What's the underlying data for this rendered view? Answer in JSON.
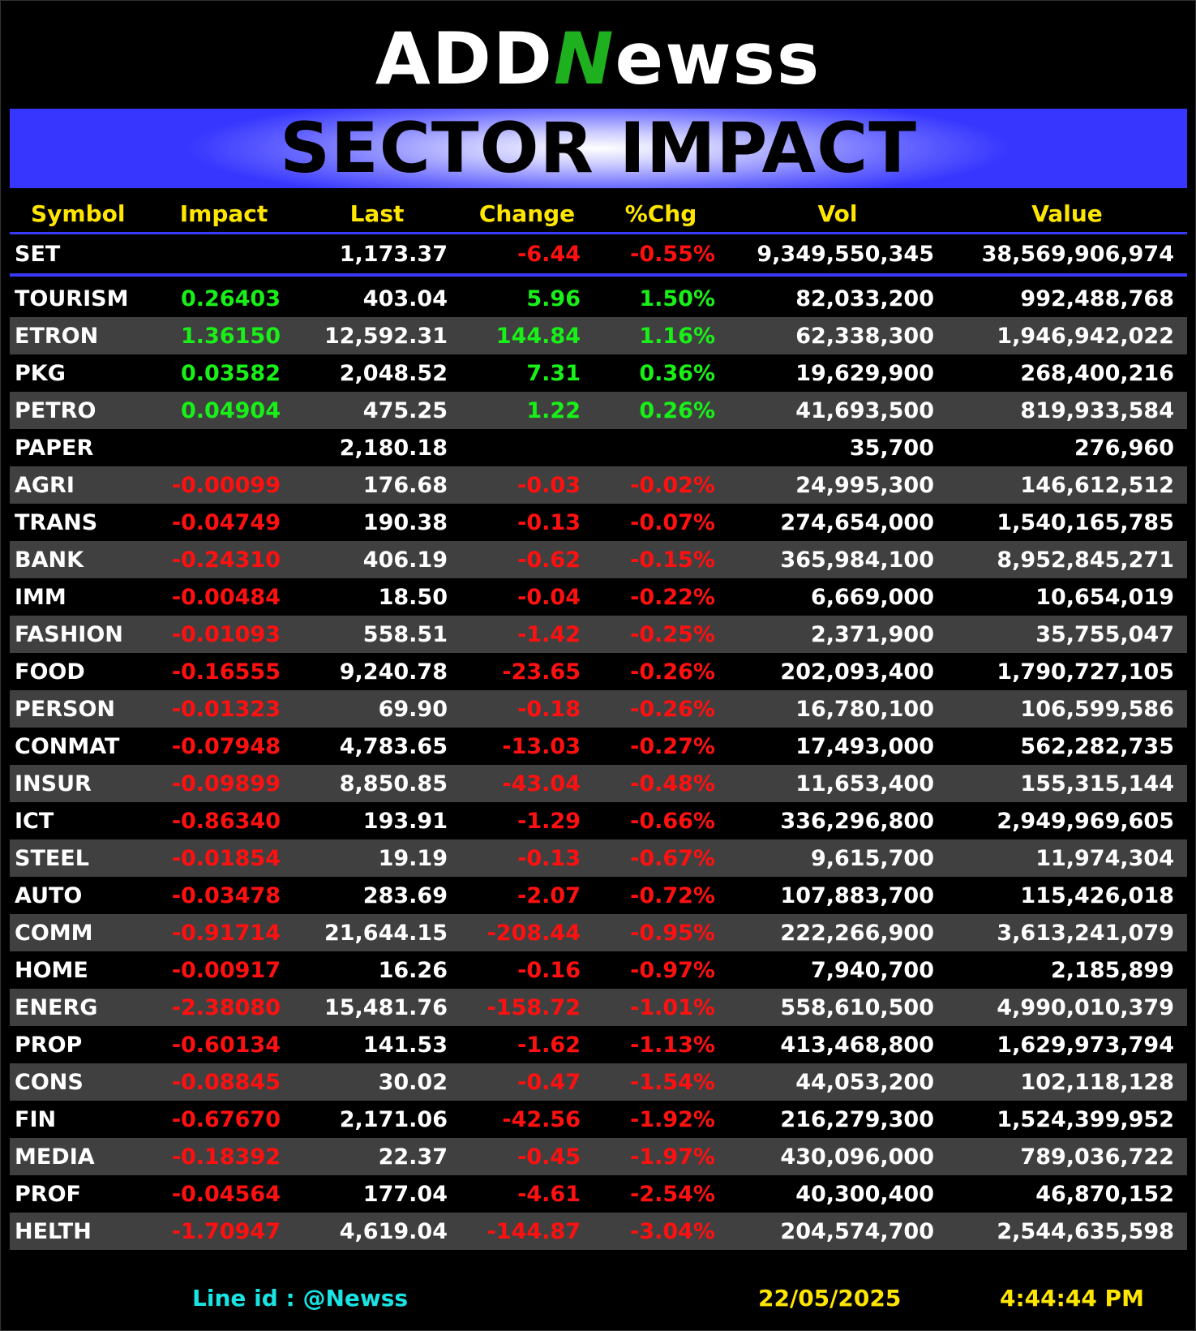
{
  "logo": {
    "pre": "ADD",
    "n": "N",
    "post": "ewss"
  },
  "title": "SECTOR IMPACT",
  "columns": [
    "Symbol",
    "Impact",
    "Last",
    "Change",
    "%Chg",
    "Vol",
    "Value"
  ],
  "index": {
    "symbol": "SET",
    "impact": "",
    "last": "1,173.37",
    "change": "-6.44",
    "pct": "-0.55%",
    "vol": "9,349,550,345",
    "value": "38,569,906,974",
    "color": "#ff1010"
  },
  "colors": {
    "positive": "#18f018",
    "negative": "#ff1010",
    "header_text": "#ffe600",
    "accent": "#3a3aff",
    "row_alt": "#404040",
    "line_id": "#19e3e3"
  },
  "rows": [
    {
      "symbol": "TOURISM",
      "impact": "0.26403",
      "last": "403.04",
      "change": "5.96",
      "pct": "1.50%",
      "vol": "82,033,200",
      "value": "992,488,768",
      "dir": "pos"
    },
    {
      "symbol": "ETRON",
      "impact": "1.36150",
      "last": "12,592.31",
      "change": "144.84",
      "pct": "1.16%",
      "vol": "62,338,300",
      "value": "1,946,942,022",
      "dir": "pos"
    },
    {
      "symbol": "PKG",
      "impact": "0.03582",
      "last": "2,048.52",
      "change": "7.31",
      "pct": "0.36%",
      "vol": "19,629,900",
      "value": "268,400,216",
      "dir": "pos"
    },
    {
      "symbol": "PETRO",
      "impact": "0.04904",
      "last": "475.25",
      "change": "1.22",
      "pct": "0.26%",
      "vol": "41,693,500",
      "value": "819,933,584",
      "dir": "pos"
    },
    {
      "symbol": "PAPER",
      "impact": "",
      "last": "2,180.18",
      "change": "",
      "pct": "",
      "vol": "35,700",
      "value": "276,960",
      "dir": "none"
    },
    {
      "symbol": "AGRI",
      "impact": "-0.00099",
      "last": "176.68",
      "change": "-0.03",
      "pct": "-0.02%",
      "vol": "24,995,300",
      "value": "146,612,512",
      "dir": "neg"
    },
    {
      "symbol": "TRANS",
      "impact": "-0.04749",
      "last": "190.38",
      "change": "-0.13",
      "pct": "-0.07%",
      "vol": "274,654,000",
      "value": "1,540,165,785",
      "dir": "neg"
    },
    {
      "symbol": "BANK",
      "impact": "-0.24310",
      "last": "406.19",
      "change": "-0.62",
      "pct": "-0.15%",
      "vol": "365,984,100",
      "value": "8,952,845,271",
      "dir": "neg"
    },
    {
      "symbol": "IMM",
      "impact": "-0.00484",
      "last": "18.50",
      "change": "-0.04",
      "pct": "-0.22%",
      "vol": "6,669,000",
      "value": "10,654,019",
      "dir": "neg"
    },
    {
      "symbol": "FASHION",
      "impact": "-0.01093",
      "last": "558.51",
      "change": "-1.42",
      "pct": "-0.25%",
      "vol": "2,371,900",
      "value": "35,755,047",
      "dir": "neg"
    },
    {
      "symbol": "FOOD",
      "impact": "-0.16555",
      "last": "9,240.78",
      "change": "-23.65",
      "pct": "-0.26%",
      "vol": "202,093,400",
      "value": "1,790,727,105",
      "dir": "neg"
    },
    {
      "symbol": "PERSON",
      "impact": "-0.01323",
      "last": "69.90",
      "change": "-0.18",
      "pct": "-0.26%",
      "vol": "16,780,100",
      "value": "106,599,586",
      "dir": "neg"
    },
    {
      "symbol": "CONMAT",
      "impact": "-0.07948",
      "last": "4,783.65",
      "change": "-13.03",
      "pct": "-0.27%",
      "vol": "17,493,000",
      "value": "562,282,735",
      "dir": "neg"
    },
    {
      "symbol": "INSUR",
      "impact": "-0.09899",
      "last": "8,850.85",
      "change": "-43.04",
      "pct": "-0.48%",
      "vol": "11,653,400",
      "value": "155,315,144",
      "dir": "neg"
    },
    {
      "symbol": "ICT",
      "impact": "-0.86340",
      "last": "193.91",
      "change": "-1.29",
      "pct": "-0.66%",
      "vol": "336,296,800",
      "value": "2,949,969,605",
      "dir": "neg"
    },
    {
      "symbol": "STEEL",
      "impact": "-0.01854",
      "last": "19.19",
      "change": "-0.13",
      "pct": "-0.67%",
      "vol": "9,615,700",
      "value": "11,974,304",
      "dir": "neg"
    },
    {
      "symbol": "AUTO",
      "impact": "-0.03478",
      "last": "283.69",
      "change": "-2.07",
      "pct": "-0.72%",
      "vol": "107,883,700",
      "value": "115,426,018",
      "dir": "neg"
    },
    {
      "symbol": "COMM",
      "impact": "-0.91714",
      "last": "21,644.15",
      "change": "-208.44",
      "pct": "-0.95%",
      "vol": "222,266,900",
      "value": "3,613,241,079",
      "dir": "neg"
    },
    {
      "symbol": "HOME",
      "impact": "-0.00917",
      "last": "16.26",
      "change": "-0.16",
      "pct": "-0.97%",
      "vol": "7,940,700",
      "value": "2,185,899",
      "dir": "neg"
    },
    {
      "symbol": "ENERG",
      "impact": "-2.38080",
      "last": "15,481.76",
      "change": "-158.72",
      "pct": "-1.01%",
      "vol": "558,610,500",
      "value": "4,990,010,379",
      "dir": "neg"
    },
    {
      "symbol": "PROP",
      "impact": "-0.60134",
      "last": "141.53",
      "change": "-1.62",
      "pct": "-1.13%",
      "vol": "413,468,800",
      "value": "1,629,973,794",
      "dir": "neg"
    },
    {
      "symbol": "CONS",
      "impact": "-0.08845",
      "last": "30.02",
      "change": "-0.47",
      "pct": "-1.54%",
      "vol": "44,053,200",
      "value": "102,118,128",
      "dir": "neg"
    },
    {
      "symbol": "FIN",
      "impact": "-0.67670",
      "last": "2,171.06",
      "change": "-42.56",
      "pct": "-1.92%",
      "vol": "216,279,300",
      "value": "1,524,399,952",
      "dir": "neg"
    },
    {
      "symbol": "MEDIA",
      "impact": "-0.18392",
      "last": "22.37",
      "change": "-0.45",
      "pct": "-1.97%",
      "vol": "430,096,000",
      "value": "789,036,722",
      "dir": "neg"
    },
    {
      "symbol": "PROF",
      "impact": "-0.04564",
      "last": "177.04",
      "change": "-4.61",
      "pct": "-2.54%",
      "vol": "40,300,400",
      "value": "46,870,152",
      "dir": "neg"
    },
    {
      "symbol": "HELTH",
      "impact": "-1.70947",
      "last": "4,619.04",
      "change": "-144.87",
      "pct": "-3.04%",
      "vol": "204,574,700",
      "value": "2,544,635,598",
      "dir": "neg"
    }
  ],
  "footer": {
    "line_id": "Line id  : @Newss",
    "date": "22/05/2025",
    "time": "4:44:44 PM"
  }
}
